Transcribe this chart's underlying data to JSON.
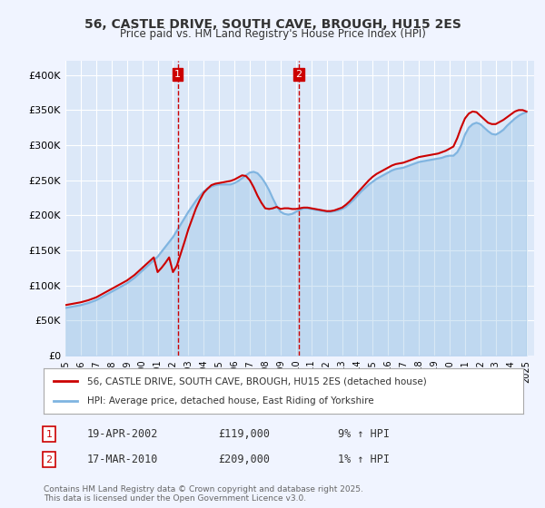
{
  "title_line1": "56, CASTLE DRIVE, SOUTH CAVE, BROUGH, HU15 2ES",
  "title_line2": "Price paid vs. HM Land Registry's House Price Index (HPI)",
  "ylabel_ticks": [
    "£0",
    "£50K",
    "£100K",
    "£150K",
    "£200K",
    "£250K",
    "£300K",
    "£350K",
    "£400K"
  ],
  "ytick_values": [
    0,
    50000,
    100000,
    150000,
    200000,
    250000,
    300000,
    350000,
    400000
  ],
  "ylim": [
    0,
    420000
  ],
  "xlim_start": 1995.0,
  "xlim_end": 2025.5,
  "xticks": [
    1995,
    1996,
    1997,
    1998,
    1999,
    2000,
    2001,
    2002,
    2003,
    2004,
    2005,
    2006,
    2007,
    2008,
    2009,
    2010,
    2011,
    2012,
    2013,
    2014,
    2015,
    2016,
    2017,
    2018,
    2019,
    2020,
    2021,
    2022,
    2023,
    2024,
    2025
  ],
  "background_color": "#f0f4ff",
  "plot_bg_color": "#dce8f8",
  "grid_color": "#ffffff",
  "line_color_red": "#cc0000",
  "line_color_blue": "#7fb4e0",
  "vline_color": "#cc0000",
  "vline_dates": [
    2002.3,
    2010.2
  ],
  "vline_labels": [
    "1",
    "2"
  ],
  "legend_label_red": "56, CASTLE DRIVE, SOUTH CAVE, BROUGH, HU15 2ES (detached house)",
  "legend_label_blue": "HPI: Average price, detached house, East Riding of Yorkshire",
  "annotation_rows": [
    {
      "num": "1",
      "date": "19-APR-2002",
      "price": "£119,000",
      "hpi": "9% ↑ HPI"
    },
    {
      "num": "2",
      "date": "17-MAR-2010",
      "price": "£209,000",
      "hpi": "1% ↑ HPI"
    }
  ],
  "footer": "Contains HM Land Registry data © Crown copyright and database right 2025.\nThis data is licensed under the Open Government Licence v3.0.",
  "hpi_data_x": [
    1995.0,
    1995.25,
    1995.5,
    1995.75,
    1996.0,
    1996.25,
    1996.5,
    1996.75,
    1997.0,
    1997.25,
    1997.5,
    1997.75,
    1998.0,
    1998.25,
    1998.5,
    1998.75,
    1999.0,
    1999.25,
    1999.5,
    1999.75,
    2000.0,
    2000.25,
    2000.5,
    2000.75,
    2001.0,
    2001.25,
    2001.5,
    2001.75,
    2002.0,
    2002.25,
    2002.5,
    2002.75,
    2003.0,
    2003.25,
    2003.5,
    2003.75,
    2004.0,
    2004.25,
    2004.5,
    2004.75,
    2005.0,
    2005.25,
    2005.5,
    2005.75,
    2006.0,
    2006.25,
    2006.5,
    2006.75,
    2007.0,
    2007.25,
    2007.5,
    2007.75,
    2008.0,
    2008.25,
    2008.5,
    2008.75,
    2009.0,
    2009.25,
    2009.5,
    2009.75,
    2010.0,
    2010.25,
    2010.5,
    2010.75,
    2011.0,
    2011.25,
    2011.5,
    2011.75,
    2012.0,
    2012.25,
    2012.5,
    2012.75,
    2013.0,
    2013.25,
    2013.5,
    2013.75,
    2014.0,
    2014.25,
    2014.5,
    2014.75,
    2015.0,
    2015.25,
    2015.5,
    2015.75,
    2016.0,
    2016.25,
    2016.5,
    2016.75,
    2017.0,
    2017.25,
    2017.5,
    2017.75,
    2018.0,
    2018.25,
    2018.5,
    2018.75,
    2019.0,
    2019.25,
    2019.5,
    2019.75,
    2020.0,
    2020.25,
    2020.5,
    2020.75,
    2021.0,
    2021.25,
    2021.5,
    2021.75,
    2022.0,
    2022.25,
    2022.5,
    2022.75,
    2023.0,
    2023.25,
    2023.5,
    2023.75,
    2024.0,
    2024.25,
    2024.5,
    2024.75,
    2025.0
  ],
  "hpi_data_y": [
    68000,
    69000,
    70000,
    71000,
    72000,
    73500,
    75000,
    77000,
    79000,
    82000,
    85000,
    88000,
    91000,
    94000,
    97000,
    100000,
    103000,
    107000,
    111000,
    116000,
    121000,
    126000,
    131000,
    136000,
    141000,
    148000,
    155000,
    162000,
    169000,
    178000,
    187000,
    196000,
    205000,
    213000,
    221000,
    228000,
    234000,
    238000,
    241000,
    243000,
    244000,
    244000,
    244000,
    244000,
    246000,
    249000,
    253000,
    257000,
    261000,
    262000,
    260000,
    254000,
    246000,
    236000,
    224000,
    213000,
    205000,
    202000,
    201000,
    202000,
    205000,
    208000,
    210000,
    210000,
    209000,
    208000,
    207000,
    206000,
    205000,
    205000,
    206000,
    207000,
    209000,
    212000,
    217000,
    222000,
    228000,
    234000,
    239000,
    244000,
    248000,
    252000,
    255000,
    258000,
    261000,
    264000,
    266000,
    267000,
    268000,
    270000,
    272000,
    274000,
    276000,
    277000,
    278000,
    279000,
    280000,
    281000,
    282000,
    284000,
    285000,
    285000,
    290000,
    300000,
    315000,
    325000,
    330000,
    332000,
    330000,
    325000,
    320000,
    316000,
    315000,
    318000,
    322000,
    328000,
    333000,
    338000,
    342000,
    345000,
    347000
  ],
  "price_data_x": [
    1995.0,
    1995.25,
    1995.5,
    1995.75,
    1996.0,
    1996.25,
    1996.5,
    1996.75,
    1997.0,
    1997.25,
    1997.5,
    1997.75,
    1998.0,
    1998.25,
    1998.5,
    1998.75,
    1999.0,
    1999.25,
    1999.5,
    1999.75,
    2000.0,
    2000.25,
    2000.5,
    2000.75,
    2001.0,
    2001.25,
    2001.5,
    2001.75,
    2002.0,
    2002.25,
    2002.5,
    2002.75,
    2003.0,
    2003.25,
    2003.5,
    2003.75,
    2004.0,
    2004.25,
    2004.5,
    2004.75,
    2005.0,
    2005.25,
    2005.5,
    2005.75,
    2006.0,
    2006.25,
    2006.5,
    2006.75,
    2007.0,
    2007.25,
    2007.5,
    2007.75,
    2008.0,
    2008.25,
    2008.5,
    2008.75,
    2009.0,
    2009.25,
    2009.5,
    2009.75,
    2010.0,
    2010.25,
    2010.5,
    2010.75,
    2011.0,
    2011.25,
    2011.5,
    2011.75,
    2012.0,
    2012.25,
    2012.5,
    2012.75,
    2013.0,
    2013.25,
    2013.5,
    2013.75,
    2014.0,
    2014.25,
    2014.5,
    2014.75,
    2015.0,
    2015.25,
    2015.5,
    2015.75,
    2016.0,
    2016.25,
    2016.5,
    2016.75,
    2017.0,
    2017.25,
    2017.5,
    2017.75,
    2018.0,
    2018.25,
    2018.5,
    2018.75,
    2019.0,
    2019.25,
    2019.5,
    2019.75,
    2020.0,
    2020.25,
    2020.5,
    2020.75,
    2021.0,
    2021.25,
    2021.5,
    2021.75,
    2022.0,
    2022.25,
    2022.5,
    2022.75,
    2023.0,
    2023.25,
    2023.5,
    2023.75,
    2024.0,
    2024.25,
    2024.5,
    2024.75,
    2025.0
  ],
  "price_data_y": [
    72000,
    73000,
    74000,
    75000,
    76000,
    77500,
    79000,
    81000,
    83000,
    86000,
    89000,
    92000,
    95000,
    98000,
    101000,
    104000,
    107000,
    111000,
    115000,
    120000,
    125000,
    130000,
    135000,
    140000,
    119000,
    125000,
    132000,
    140000,
    119000,
    128000,
    145000,
    162000,
    180000,
    195000,
    210000,
    222000,
    232000,
    238000,
    243000,
    245000,
    246000,
    247000,
    248000,
    249000,
    251000,
    254000,
    257000,
    256000,
    250000,
    240000,
    228000,
    218000,
    210000,
    209000,
    210000,
    212000,
    209000,
    210000,
    210000,
    209000,
    209000,
    210000,
    211000,
    211000,
    210000,
    209000,
    208000,
    207000,
    206000,
    206000,
    207000,
    209000,
    211000,
    215000,
    220000,
    226000,
    232000,
    238000,
    244000,
    250000,
    255000,
    259000,
    262000,
    265000,
    268000,
    271000,
    273000,
    274000,
    275000,
    277000,
    279000,
    281000,
    283000,
    284000,
    285000,
    286000,
    287000,
    288000,
    290000,
    292000,
    295000,
    298000,
    310000,
    325000,
    338000,
    345000,
    348000,
    347000,
    342000,
    337000,
    332000,
    330000,
    330000,
    333000,
    336000,
    340000,
    344000,
    348000,
    350000,
    350000,
    348000
  ]
}
